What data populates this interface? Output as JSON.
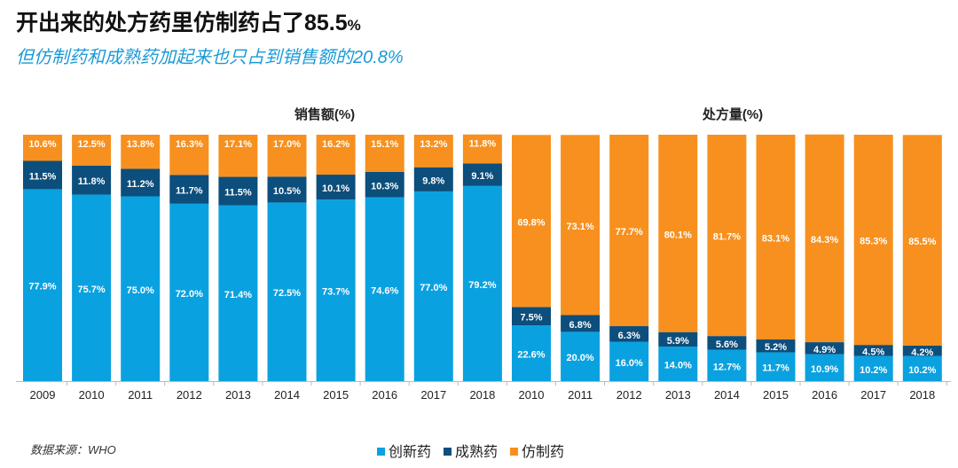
{
  "title": "开出来的处方药里仿制药占了85.5",
  "title_suffix": "%",
  "subtitle": "但仿制药和成熟药加起来也只占到销售额的20.8%",
  "source": "数据来源：WHO",
  "colors": {
    "innovative": "#0aa1e0",
    "mature": "#0c4e7c",
    "generic": "#f7901e"
  },
  "chart_data": [
    {
      "type": "bar",
      "stacked": true,
      "title": "销售额(%)",
      "categories": [
        "2009",
        "2010",
        "2011",
        "2012",
        "2013",
        "2014",
        "2015",
        "2016",
        "2017",
        "2018"
      ],
      "ylim": [
        0,
        100
      ],
      "series": [
        {
          "name": "创新药",
          "values": [
            77.9,
            75.7,
            75.0,
            72.0,
            71.4,
            72.5,
            73.7,
            74.6,
            77.0,
            79.2
          ]
        },
        {
          "name": "成熟药",
          "values": [
            11.5,
            11.8,
            11.2,
            11.7,
            11.5,
            10.5,
            10.1,
            10.3,
            9.8,
            9.1
          ]
        },
        {
          "name": "仿制药",
          "values": [
            10.6,
            12.5,
            13.8,
            16.3,
            17.1,
            17.0,
            16.2,
            15.1,
            13.2,
            11.8
          ]
        }
      ]
    },
    {
      "type": "bar",
      "stacked": true,
      "title": "处方量(%)",
      "categories": [
        "2010",
        "2011",
        "2012",
        "2013",
        "2014",
        "2015",
        "2016",
        "2017",
        "2018"
      ],
      "ylim": [
        0,
        100
      ],
      "series": [
        {
          "name": "创新药",
          "values": [
            22.6,
            20.0,
            16.0,
            14.0,
            12.7,
            11.7,
            10.9,
            10.2,
            10.2
          ]
        },
        {
          "name": "成熟药",
          "values": [
            7.5,
            6.8,
            6.3,
            5.9,
            5.6,
            5.2,
            4.9,
            4.5,
            4.2
          ]
        },
        {
          "name": "仿制药",
          "values": [
            69.8,
            73.1,
            77.7,
            80.1,
            81.7,
            83.1,
            84.3,
            85.3,
            85.5
          ]
        }
      ]
    }
  ],
  "legend": [
    "创新药",
    "成熟药",
    "仿制药"
  ]
}
